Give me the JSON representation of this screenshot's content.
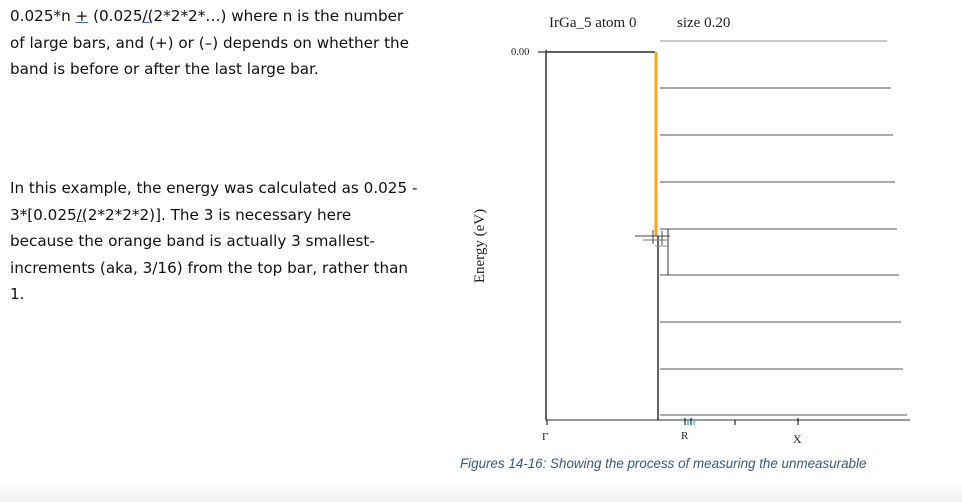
{
  "paragraph_1": {
    "line_1a": "0.025*n ",
    "line_1b": "+",
    "line_1c": " (0.025",
    "line_1d": "/(",
    "line_1e": "2*2*2*…) where n is the number",
    "line_2": "of large bars, and (+) or (–) depends on whether the",
    "line_3": "band is before or after the last large bar."
  },
  "paragraph_2": {
    "line_1": "In this example, the energy was calculated as 0.025 -",
    "line_2a": "3*[0.025",
    "line_2b": "/(",
    "line_2c": "2*2*2*2)]. The 3 is necessary here",
    "line_3": "because the orange band is actually 3 smallest-",
    "line_4": "increments (aka, 3/16) from the top bar, rather than",
    "line_5": "1."
  },
  "plot": {
    "title": "IrGa_5 atom 0",
    "size_label": "size 0.20",
    "ylabel": "Energy (eV)",
    "ytick": "0.00",
    "xticks": [
      "Γ",
      "R",
      "X"
    ],
    "colors": {
      "orange_band": "#f5a623",
      "axis": "#000000",
      "bars": "#555555",
      "top_bar": "#aaaaaa"
    }
  },
  "caption": "Figures 14-16: Showing the process of measuring the unmeasurable"
}
